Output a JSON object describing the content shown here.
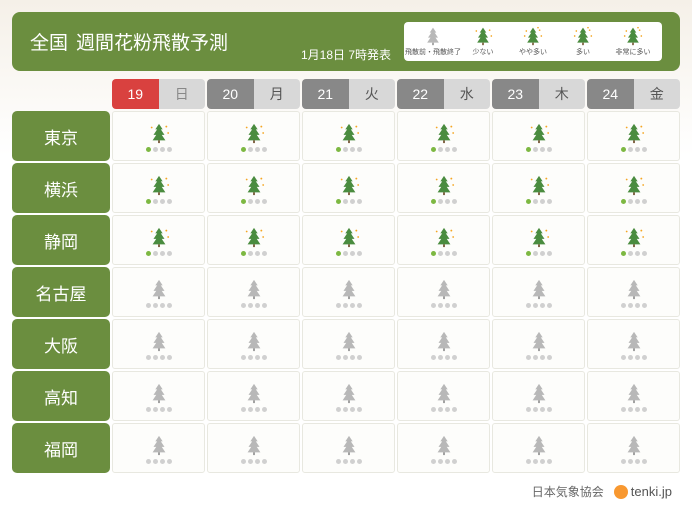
{
  "header": {
    "region": "全国",
    "title": "週間花粉飛散予測",
    "issue_date": "1月18日 7時発表"
  },
  "legend": [
    {
      "label": "飛散前・飛散終了",
      "level": 0
    },
    {
      "label": "少ない",
      "level": 1
    },
    {
      "label": "やや多い",
      "level": 2
    },
    {
      "label": "多い",
      "level": 3
    },
    {
      "label": "非常に多い",
      "level": 4
    }
  ],
  "dates": [
    {
      "num": "19",
      "day": "日",
      "type": "sunday"
    },
    {
      "num": "20",
      "day": "月",
      "type": "weekday"
    },
    {
      "num": "21",
      "day": "火",
      "type": "weekday"
    },
    {
      "num": "22",
      "day": "水",
      "type": "weekday"
    },
    {
      "num": "23",
      "day": "木",
      "type": "weekday"
    },
    {
      "num": "24",
      "day": "金",
      "type": "weekday"
    }
  ],
  "cities": [
    {
      "name": "東京",
      "levels": [
        1,
        1,
        1,
        1,
        1,
        1
      ]
    },
    {
      "name": "横浜",
      "levels": [
        1,
        1,
        1,
        1,
        1,
        1
      ]
    },
    {
      "name": "静岡",
      "levels": [
        1,
        1,
        1,
        1,
        1,
        1
      ]
    },
    {
      "name": "名古屋",
      "levels": [
        0,
        0,
        0,
        0,
        0,
        0
      ]
    },
    {
      "name": "大阪",
      "levels": [
        0,
        0,
        0,
        0,
        0,
        0
      ]
    },
    {
      "name": "高知",
      "levels": [
        0,
        0,
        0,
        0,
        0,
        0
      ]
    },
    {
      "name": "福岡",
      "levels": [
        0,
        0,
        0,
        0,
        0,
        0
      ]
    }
  ],
  "footer": {
    "source": "日本気象協会",
    "logo_text": "tenki.jp"
  },
  "colors": {
    "header_bg": "#6b8e3f",
    "sunday_bg": "#d9413f",
    "tree_gray": "#b8b8b8",
    "tree_green": "#4a8c3f",
    "dot_active": "#7db842",
    "dot_inactive": "#d0d0d0"
  }
}
